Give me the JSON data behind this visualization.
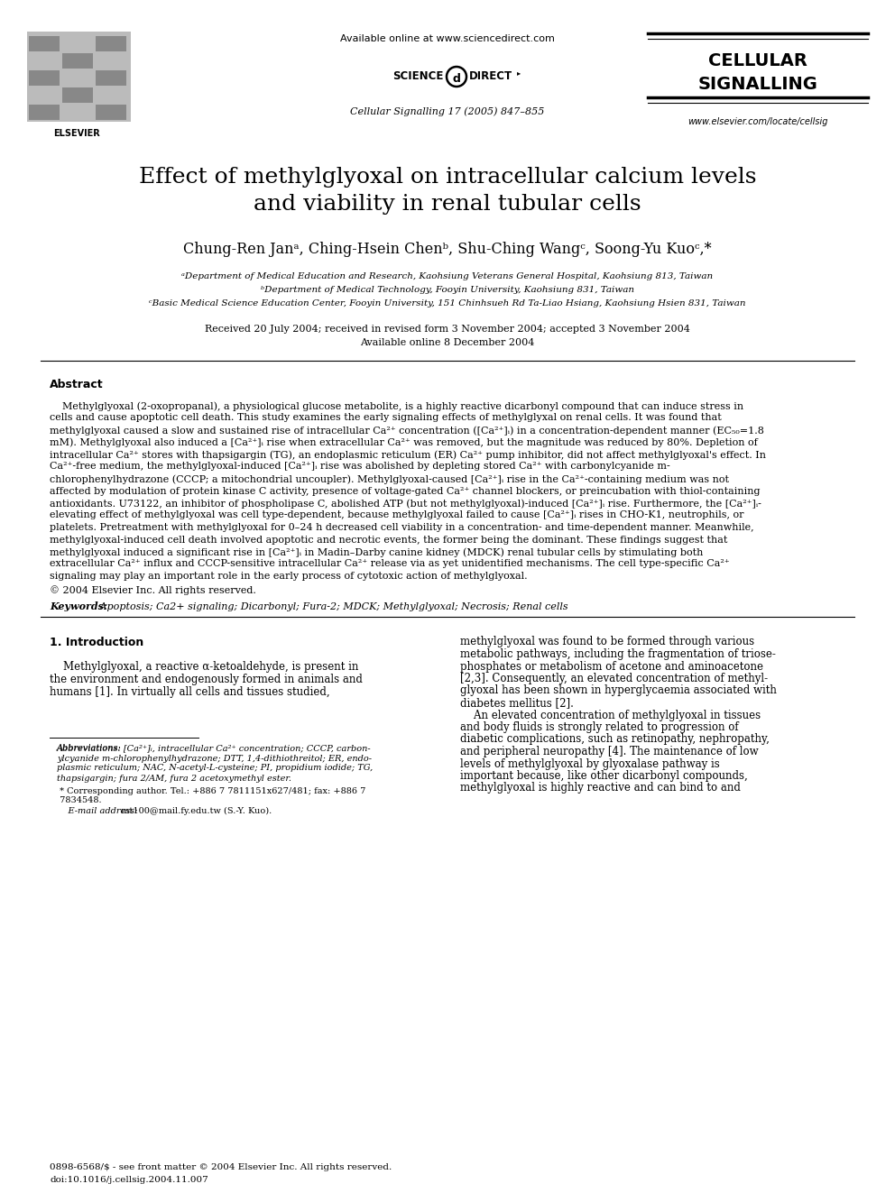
{
  "title_line1": "Effect of methylglyoxal on intracellular calcium levels",
  "title_line2": "and viability in renal tubular cells",
  "authors": "Chung-Ren Janᵃ, Ching-Hsein Chenᵇ, Shu-Ching Wangᶜ, Soong-Yu Kuoᶜ,*",
  "affil_a": "ᵃDepartment of Medical Education and Research, Kaohsiung Veterans General Hospital, Kaohsiung 813, Taiwan",
  "affil_b": "ᵇDepartment of Medical Technology, Fooyin University, Kaohsiung 831, Taiwan",
  "affil_c": "ᶜBasic Medical Science Education Center, Fooyin University, 151 Chinhsueh Rd Ta-Liao Hsiang, Kaohsiung Hsien 831, Taiwan",
  "received": "Received 20 July 2004; received in revised form 3 November 2004; accepted 3 November 2004",
  "available": "Available online 8 December 2004",
  "header_available": "Available online at www.sciencedirect.com",
  "header_journal": "Cellular Signalling 17 (2005) 847–855",
  "journal_name_line1": "CELLULAR",
  "journal_name_line2": "SIGNALLING",
  "elsevier_url": "www.elsevier.com/locate/cellsig",
  "elsevier_label": "ELSEVIER",
  "abstract_title": "Abstract",
  "abstract_body": "    Methylglyoxal (2-oxopropanal), a physiological glucose metabolite, is a highly reactive dicarbonyl compound that can induce stress in cells and cause apoptotic cell death. This study examines the early signaling effects of methylglyxal on renal cells. It was found that methylglyoxal caused a slow and sustained rise of intracellular Ca2+ concentration ([Ca2+]i) in a concentration-dependent manner (EC50=1.8 mM). Methylglyoxal also induced a [Ca2+]i rise when extracellular Ca2+ was removed, but the magnitude was reduced by 80%. Depletion of intracellular Ca2+ stores with thapsigargin (TG), an endoplasmic reticulum (ER) Ca2+ pump inhibitor, did not affect methylglyoxal's effect. In Ca2+-free medium, the methylglyoxal-induced [Ca2+]i rise was abolished by depleting stored Ca2+ with carbonylcyanide m-chlorophenylhydrazone (CCCP; a mitochondrial uncoupler). Methylglyoxal-caused [Ca2+]i rise in the Ca2+-containing medium was not affected by modulation of protein kinase C activity, presence of voltage-gated Ca2+ channel blockers, or preincubation with thiol-containing antioxidants. U73122, an inhibitor of phospholipase C, abolished ATP (but not methylglyoxal)-induced [Ca2+]i rise. Furthermore, the [Ca2+]i-elevating effect of methylglyoxal was cell type-dependent, because methylglyoxal failed to cause [Ca2+]i rises in CHO-K1, neutrophils, or platelets. Pretreatment with methylglyoxal for 0-24 h decreased cell viability in a concentration- and time-dependent manner. Meanwhile, methylglyoxal-induced cell death involved apoptotic and necrotic events, the former being the dominant. These findings suggest that methylglyoxal induced a significant rise in [Ca2+]i in Madin-Darby canine kidney (MDCK) renal tubular cells by stimulating both extracellular Ca2+ influx and CCCP-sensitive intracellular Ca2+ release via as yet unidentified mechanisms. The cell type-specific Ca2+ signaling may play an important role in the early process of cytotoxic action of methylglyoxal.",
  "copyright": "© 2004 Elsevier Inc. All rights reserved.",
  "keywords_label": "Keywords:",
  "keywords_text": " Apoptosis; Ca2+ signaling; Dicarbonyl; Fura-2; MDCK; Methylglyoxal; Necrosis; Renal cells",
  "section1_title": "1. Introduction",
  "intro_col1_line1": "    Methylglyoxal, a reactive α-ketoaldehyde, is present in",
  "intro_col1_line2": "the environment and endogenously formed in animals and",
  "intro_col1_line3": "humans [1]. In virtually all cells and tissues studied,",
  "intro_col2_line1": "methylglyoxal was found to be formed through various",
  "intro_col2_line2": "metabolic pathways, including the fragmentation of triose-",
  "intro_col2_line3": "phosphates or metabolism of acetone and aminoacetone",
  "intro_col2_line4": "[2,3]. Consequently, an elevated concentration of methyl-",
  "intro_col2_line5": "glyoxal has been shown in hyperglycaemia associated with",
  "intro_col2_line6": "diabetes mellitus [2].",
  "intro_col2_line7": "    An elevated concentration of methylglyoxal in tissues",
  "intro_col2_line8": "and body fluids is strongly related to progression of",
  "intro_col2_line9": "diabetic complications, such as retinopathy, nephropathy,",
  "intro_col2_line10": "and peripheral neuropathy [4]. The maintenance of low",
  "intro_col2_line11": "levels of methylglyoxal by glyoxalase pathway is",
  "intro_col2_line12": "important because, like other dicarbonyl compounds,",
  "intro_col2_line13": "methylglyoxal is highly reactive and can bind to and",
  "fn_abbrev_label": "Abbreviations:",
  "fn_abbrev_text": " [Ca2+]i, intracellular Ca2+ concentration; CCCP, carbonylcyanide m-chlorophenylhydrazone; DTT, 1,4-dithiothreitol; ER, endoplasmic reticulum; NAC, N-acetyl-L-cysteine; PI, propidium iodide; TG, thapsigargin; fura 2/AM, fura 2 acetoxymethyl ester.",
  "fn_corresponding": " * Corresponding author. Tel.: +886 7 7811151x627/481; fax: +886 7 7834548.",
  "fn_email_label": "E-mail address:",
  "fn_email_text": " mt100@mail.fy.edu.tw (S.-Y. Kuo).",
  "bottom_issn": "0898-6568/$ - see front matter © 2004 Elsevier Inc. All rights reserved.",
  "bottom_doi": "doi:10.1016/j.cellsig.2004.11.007"
}
